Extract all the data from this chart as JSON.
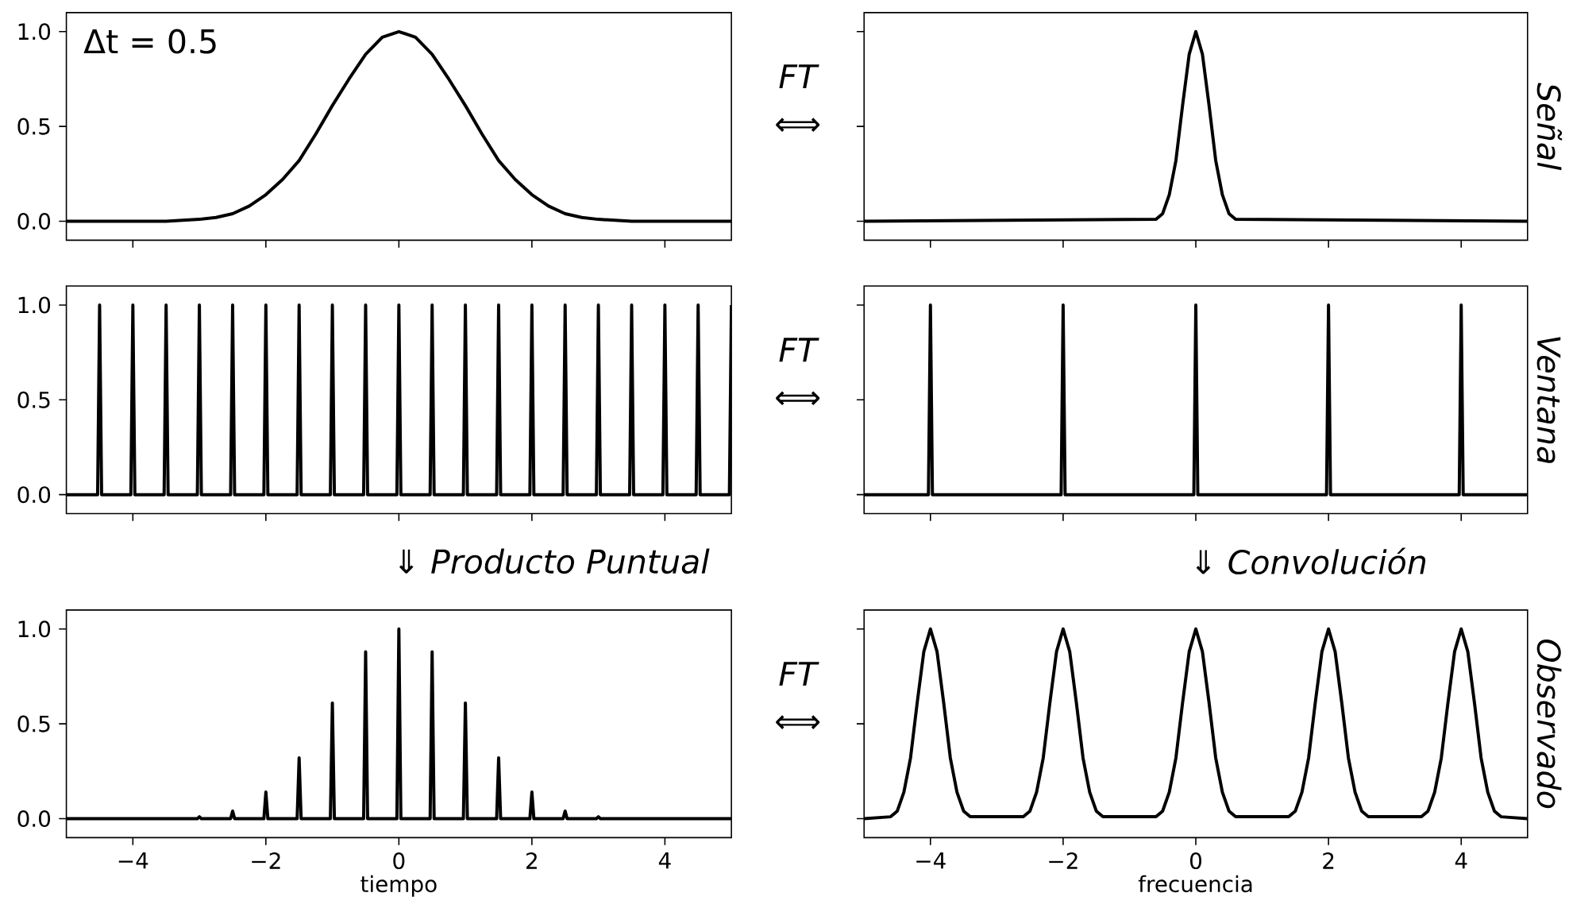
{
  "chart_data": [
    {
      "type": "line",
      "color": "#000000",
      "annotations": [
        "Δt = 0.5"
      ],
      "tick_labels": "y",
      "xlim": [
        -5,
        5
      ],
      "ylim": [
        -0.1,
        1.1
      ],
      "xticks": [
        -4,
        -2,
        0,
        2,
        4
      ],
      "yticks": [
        {
          "value": 0,
          "label": "0.0"
        },
        {
          "value": 0.5,
          "label": "0.5"
        },
        {
          "value": 1,
          "label": "1.0"
        }
      ],
      "x": [
        -5,
        -4,
        -3.5,
        -3,
        -2.75,
        -2.5,
        -2.25,
        -2,
        -1.75,
        -1.5,
        -1.25,
        -1,
        -0.75,
        -0.5,
        -0.25,
        0,
        0.25,
        0.5,
        0.75,
        1,
        1.25,
        1.5,
        1.75,
        2,
        2.25,
        2.5,
        2.75,
        3,
        3.5,
        4,
        5
      ],
      "values": [
        0,
        0,
        0,
        0.01,
        0.02,
        0.04,
        0.08,
        0.14,
        0.22,
        0.32,
        0.46,
        0.61,
        0.75,
        0.88,
        0.97,
        1,
        0.97,
        0.88,
        0.75,
        0.61,
        0.46,
        0.32,
        0.22,
        0.14,
        0.08,
        0.04,
        0.02,
        0.01,
        0,
        0,
        0
      ]
    },
    {
      "type": "line",
      "color": "#000000",
      "ylabel": "Señal",
      "annotations": [
        "FT",
        "⟺"
      ],
      "tick_labels": false,
      "xlim": [
        -5,
        5
      ],
      "ylim": [
        -0.1,
        1.1
      ],
      "xticks": [
        -4,
        -2,
        0,
        2,
        4
      ],
      "yticks": [
        {
          "value": 0,
          "label": null
        },
        {
          "value": 0.5,
          "label": null
        },
        {
          "value": 1,
          "label": null
        }
      ],
      "x": [
        -5,
        -0.6,
        -0.5,
        -0.4,
        -0.3,
        -0.2,
        -0.1,
        0,
        0.1,
        0.2,
        0.3,
        0.4,
        0.5,
        0.6,
        5
      ],
      "values": [
        0,
        0.01,
        0.04,
        0.14,
        0.32,
        0.61,
        0.88,
        1,
        0.88,
        0.61,
        0.32,
        0.14,
        0.04,
        0.01,
        0
      ]
    },
    {
      "type": "line",
      "color": "#000000",
      "tick_labels": "y",
      "xlim": [
        -5,
        5
      ],
      "ylim": [
        -0.1,
        1.1
      ],
      "xticks": [
        -4,
        -2,
        0,
        2,
        4
      ],
      "yticks": [
        {
          "value": 0,
          "label": "0.0"
        },
        {
          "value": 0.5,
          "label": "0.5"
        },
        {
          "value": 1,
          "label": "1.0"
        }
      ],
      "x": [
        -5,
        -4.53,
        -4.5,
        -4.47,
        -4.03,
        -4,
        -3.97,
        -3.53,
        -3.5,
        -3.47,
        -3.03,
        -3,
        -2.97,
        -2.53,
        -2.5,
        -2.47,
        -2.03,
        -2,
        -1.97,
        -1.53,
        -1.5,
        -1.47,
        -1.03,
        -1,
        -0.97,
        -0.53,
        -0.5,
        -0.47,
        -0.03,
        0,
        0.03,
        0.47,
        0.5,
        0.53,
        0.97,
        1,
        1.03,
        1.47,
        1.5,
        1.53,
        1.97,
        2,
        2.03,
        2.47,
        2.5,
        2.53,
        2.97,
        3,
        3.03,
        3.47,
        3.5,
        3.53,
        3.97,
        4,
        4.03,
        4.47,
        4.5,
        4.53,
        4.97,
        5
      ],
      "values": [
        0,
        0,
        1,
        0,
        0,
        1,
        0,
        0,
        1,
        0,
        0,
        1,
        0,
        0,
        1,
        0,
        0,
        1,
        0,
        0,
        1,
        0,
        0,
        1,
        0,
        0,
        1,
        0,
        0,
        1,
        0,
        0,
        1,
        0,
        0,
        1,
        0,
        0,
        1,
        0,
        0,
        1,
        0,
        0,
        1,
        0,
        0,
        1,
        0,
        0,
        1,
        0,
        0,
        1,
        0,
        0,
        1,
        0,
        0,
        1
      ]
    },
    {
      "type": "line",
      "color": "#000000",
      "ylabel": "Ventana",
      "annotations": [
        "FT",
        "⟺"
      ],
      "tick_labels": false,
      "xlim": [
        -5,
        5
      ],
      "ylim": [
        -0.1,
        1.1
      ],
      "xticks": [
        -4,
        -2,
        0,
        2,
        4
      ],
      "yticks": [
        {
          "value": 0,
          "label": null
        },
        {
          "value": 0.5,
          "label": null
        },
        {
          "value": 1,
          "label": null
        }
      ],
      "x": [
        -5,
        -4.03,
        -4,
        -3.97,
        -2.03,
        -2,
        -1.97,
        -0.03,
        0,
        0.03,
        1.97,
        2,
        2.03,
        3.97,
        4,
        4.03,
        5
      ],
      "values": [
        0,
        0,
        1,
        0,
        0,
        1,
        0,
        0,
        1,
        0,
        0,
        1,
        0,
        0,
        1,
        0,
        0
      ]
    },
    {
      "type": "line",
      "color": "#000000",
      "xlabel": "tiempo",
      "annotations": [
        "⇓ Producto Puntual"
      ],
      "xlim": [
        -5,
        5
      ],
      "ylim": [
        -0.1,
        1.1
      ],
      "xticks": [
        {
          "value": -4,
          "label": "−4"
        },
        {
          "value": -2,
          "label": "−2"
        },
        {
          "value": 0,
          "label": "0"
        },
        {
          "value": 2,
          "label": "2"
        },
        {
          "value": 4,
          "label": "4"
        }
      ],
      "yticks": [
        {
          "value": 0,
          "label": "0.0"
        },
        {
          "value": 0.5,
          "label": "0.5"
        },
        {
          "value": 1,
          "label": "1.0"
        }
      ],
      "x": [
        -5,
        -3.03,
        -3,
        -2.97,
        -2.53,
        -2.5,
        -2.47,
        -2.03,
        -2,
        -1.97,
        -1.53,
        -1.5,
        -1.47,
        -1.03,
        -1,
        -0.97,
        -0.53,
        -0.5,
        -0.47,
        -0.03,
        0,
        0.03,
        0.47,
        0.5,
        0.53,
        0.97,
        1,
        1.03,
        1.47,
        1.5,
        1.53,
        1.97,
        2,
        2.03,
        2.47,
        2.5,
        2.53,
        2.97,
        3,
        3.03,
        5
      ],
      "values": [
        0,
        0,
        0.01,
        0,
        0,
        0.04,
        0,
        0,
        0.14,
        0,
        0,
        0.32,
        0,
        0,
        0.61,
        0,
        0,
        0.88,
        0,
        0,
        1,
        0,
        0,
        0.88,
        0,
        0,
        0.61,
        0,
        0,
        0.32,
        0,
        0,
        0.14,
        0,
        0,
        0.04,
        0,
        0,
        0.01,
        0,
        0
      ]
    },
    {
      "type": "line",
      "color": "#000000",
      "xlabel": "frecuencia",
      "ylabel": "Observado",
      "annotations": [
        "FT",
        "⟺",
        "⇓ Convolución"
      ],
      "tick_labels": "x",
      "xlim": [
        -5,
        5
      ],
      "ylim": [
        -0.1,
        1.1
      ],
      "xticks": [
        {
          "value": -4,
          "label": "−4"
        },
        {
          "value": -2,
          "label": "−2"
        },
        {
          "value": 0,
          "label": "0"
        },
        {
          "value": 2,
          "label": "2"
        },
        {
          "value": 4,
          "label": "4"
        }
      ],
      "yticks": [
        {
          "value": 0,
          "label": null
        },
        {
          "value": 0.5,
          "label": null
        },
        {
          "value": 1,
          "label": null
        }
      ],
      "x": [
        -5,
        -4.6,
        -4.5,
        -4.4,
        -4.3,
        -4.2,
        -4.1,
        -4,
        -3.9,
        -3.8,
        -3.7,
        -3.6,
        -3.5,
        -3.4,
        -2.6,
        -2.5,
        -2.4,
        -2.3,
        -2.2,
        -2.1,
        -2,
        -1.9,
        -1.8,
        -1.7,
        -1.6,
        -1.5,
        -1.4,
        -0.6,
        -0.5,
        -0.4,
        -0.3,
        -0.2,
        -0.1,
        0,
        0.1,
        0.2,
        0.3,
        0.4,
        0.5,
        0.6,
        1.4,
        1.5,
        1.6,
        1.7,
        1.8,
        1.9,
        2,
        2.1,
        2.2,
        2.3,
        2.4,
        2.5,
        2.6,
        3.4,
        3.5,
        3.6,
        3.7,
        3.8,
        3.9,
        4,
        4.1,
        4.2,
        4.3,
        4.4,
        4.5,
        4.6,
        5
      ],
      "values": [
        0,
        0.01,
        0.04,
        0.14,
        0.32,
        0.61,
        0.88,
        1,
        0.88,
        0.61,
        0.32,
        0.14,
        0.04,
        0.01,
        0.01,
        0.04,
        0.14,
        0.32,
        0.61,
        0.88,
        1,
        0.88,
        0.61,
        0.32,
        0.14,
        0.04,
        0.01,
        0.01,
        0.04,
        0.14,
        0.32,
        0.61,
        0.88,
        1,
        0.88,
        0.61,
        0.32,
        0.14,
        0.04,
        0.01,
        0.01,
        0.04,
        0.14,
        0.32,
        0.61,
        0.88,
        1,
        0.88,
        0.61,
        0.32,
        0.14,
        0.04,
        0.01,
        0.01,
        0.04,
        0.14,
        0.32,
        0.61,
        0.88,
        1,
        0.88,
        0.61,
        0.32,
        0.14,
        0.04,
        0.01,
        0
      ]
    }
  ]
}
